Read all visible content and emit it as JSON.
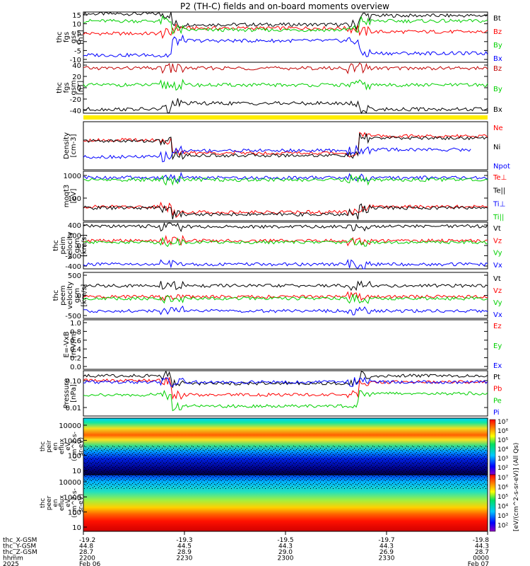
{
  "title": "P2 (TH-C) fields and on-board moments overview",
  "colors": {
    "black": "#000000",
    "red": "#ff0000",
    "green": "#00d000",
    "blue": "#0000ff",
    "darkred": "#c00000",
    "yellow": "#ffee00"
  },
  "chart_data": [
    {
      "type": "line",
      "ylabel": [
        "thc",
        "fgs",
        "gse",
        "[nT]"
      ],
      "yticks": [
        "15",
        "10",
        "5",
        "0",
        "-5",
        "-10"
      ],
      "ylim": [
        -12,
        16
      ],
      "series": [
        {
          "name": "Bt",
          "color": "#000000",
          "segments": [
            [
              0,
              0.22,
              15
            ],
            [
              0.22,
              0.68,
              9
            ],
            [
              0.68,
              1,
              14
            ]
          ]
        },
        {
          "name": "Bz",
          "color": "#ff0000",
          "segments": [
            [
              0,
              0.22,
              4
            ],
            [
              0.22,
              0.68,
              7
            ],
            [
              0.68,
              1,
              5
            ]
          ]
        },
        {
          "name": "By",
          "color": "#00d000",
          "segments": [
            [
              0,
              0.22,
              11
            ],
            [
              0.22,
              0.68,
              6
            ],
            [
              0.68,
              1,
              11
            ]
          ]
        },
        {
          "name": "Bx",
          "color": "#0000ff",
          "segments": [
            [
              0,
              0.22,
              -8
            ],
            [
              0.22,
              0.68,
              0
            ],
            [
              0.68,
              1,
              -7
            ]
          ]
        }
      ]
    },
    {
      "type": "line",
      "ylabel": [
        "thc",
        "fgs",
        "gsm",
        "[nT]"
      ],
      "yticks": [
        "40",
        "20",
        "0",
        "-20",
        "-40"
      ],
      "ylim": [
        -55,
        48
      ],
      "series": [
        {
          "name": "Bz",
          "color": "#c00000",
          "segments": [
            [
              0,
              1,
              36
            ]
          ]
        },
        {
          "name": "By",
          "color": "#00d000",
          "segments": [
            [
              0,
              1,
              2
            ]
          ]
        },
        {
          "name": "Bx",
          "color": "#000000",
          "segments": [
            [
              0,
              0.22,
              -47
            ],
            [
              0.22,
              0.68,
              -35
            ],
            [
              0.68,
              1,
              -47
            ]
          ]
        }
      ]
    },
    {
      "type": "line",
      "ylabel": [
        "Density",
        "[cm-3]"
      ],
      "yticks": [],
      "ylim": [
        0,
        1
      ],
      "series": [
        {
          "name": "Ne",
          "color": "#ff0000",
          "segments": [
            [
              0,
              0.22,
              0.62
            ],
            [
              0.22,
              0.68,
              0.35
            ],
            [
              0.68,
              1,
              0.7
            ]
          ]
        },
        {
          "name": "Ni",
          "color": "#000000",
          "segments": [
            [
              0,
              0.22,
              0.6
            ],
            [
              0.22,
              0.68,
              0.3
            ],
            [
              0.68,
              1,
              0.66
            ]
          ]
        },
        {
          "name": "Npot",
          "color": "#0000ff",
          "segments": [
            [
              0,
              0.22,
              0.27
            ],
            [
              0.22,
              0.68,
              0.4
            ],
            [
              0.68,
              0.96,
              0.42
            ]
          ]
        }
      ]
    },
    {
      "type": "line",
      "ylabel": [
        "moqt3",
        "[eV]"
      ],
      "yticks": [
        "1000",
        "100"
      ],
      "ylim": [
        1,
        3.3
      ],
      "series": [
        {
          "name": "Te⊥",
          "color": "#ff0000",
          "segments": [
            [
              0,
              0.22,
              1.65
            ],
            [
              0.22,
              0.68,
              1.4
            ],
            [
              0.68,
              1,
              1.65
            ]
          ]
        },
        {
          "name": "Te||",
          "color": "#000000",
          "segments": [
            [
              0,
              0.22,
              1.6
            ],
            [
              0.22,
              0.68,
              1.3
            ],
            [
              0.68,
              1,
              1.6
            ]
          ]
        },
        {
          "name": "Ti⊥",
          "color": "#0000ff",
          "segments": [
            [
              0,
              1,
              3.0
            ]
          ]
        },
        {
          "name": "Ti||",
          "color": "#00d000",
          "segments": [
            [
              0,
              1,
              2.9
            ]
          ]
        }
      ]
    },
    {
      "type": "line",
      "ylabel": [
        "thc",
        "peim",
        "velocity",
        "gsm",
        "[km/s]"
      ],
      "yticks": [
        "400",
        "200",
        "0",
        "-200",
        "-400"
      ],
      "ylim": [
        -460,
        470
      ],
      "series": [
        {
          "name": "Vt",
          "color": "#000000",
          "segments": [
            [
              0,
              0.22,
              390
            ],
            [
              0.22,
              0.68,
              380
            ],
            [
              0.68,
              1,
              390
            ]
          ]
        },
        {
          "name": "Vz",
          "color": "#ff0000",
          "segments": [
            [
              0,
              1,
              100
            ]
          ]
        },
        {
          "name": "Vy",
          "color": "#00d000",
          "segments": [
            [
              0,
              1,
              70
            ]
          ]
        },
        {
          "name": "Vx",
          "color": "#0000ff",
          "segments": [
            [
              0,
              1,
              -370
            ]
          ]
        }
      ]
    },
    {
      "type": "line",
      "ylabel": [
        "thc",
        "peem",
        "velocity",
        "gsm",
        "[km/s]"
      ],
      "yticks": [
        "500",
        "0",
        "-500"
      ],
      "ylim": [
        -650,
        900
      ],
      "series": [
        {
          "name": "Vt",
          "color": "#000000",
          "segments": [
            [
              0,
              1,
              450
            ]
          ]
        },
        {
          "name": "Vz",
          "color": "#ff0000",
          "segments": [
            [
              0,
              1,
              80
            ]
          ]
        },
        {
          "name": "Vy",
          "color": "#00d000",
          "segments": [
            [
              0,
              1,
              20
            ]
          ]
        },
        {
          "name": "Vx",
          "color": "#0000ff",
          "segments": [
            [
              0,
              1,
              -400
            ]
          ]
        }
      ]
    },
    {
      "type": "line",
      "ylabel": [
        "E=-VxB",
        "[mV/m]"
      ],
      "yticks": [
        "1.0",
        "0.8",
        "0.6",
        "0.4",
        "0.2",
        "0.0"
      ],
      "ylim": [
        -0.05,
        1.05
      ],
      "legend_only": true,
      "series": [
        {
          "name": "Ez",
          "color": "#ff0000",
          "segments": []
        },
        {
          "name": "Ey",
          "color": "#00d000",
          "segments": []
        },
        {
          "name": "Ex",
          "color": "#0000ff",
          "segments": []
        }
      ]
    },
    {
      "type": "line",
      "ylabel": [
        "Pressure",
        "[nPa]"
      ],
      "yticks": [
        "0.10",
        "0.01"
      ],
      "ylim": [
        -2.3,
        -0.7
      ],
      "series": [
        {
          "name": "Pt",
          "color": "#000000",
          "segments": [
            [
              0,
              0.22,
              -0.88
            ],
            [
              0.22,
              0.68,
              -1.15
            ],
            [
              0.68,
              1,
              -0.88
            ]
          ]
        },
        {
          "name": "Pb",
          "color": "#ff0000",
          "segments": [
            [
              0,
              0.22,
              -1.05
            ],
            [
              0.22,
              0.68,
              -1.55
            ],
            [
              0.68,
              1,
              -1.1
            ]
          ]
        },
        {
          "name": "Pe",
          "color": "#00d000",
          "segments": [
            [
              0,
              0.22,
              -1.55
            ],
            [
              0.22,
              0.68,
              -1.95
            ],
            [
              0.68,
              1,
              -1.5
            ]
          ]
        },
        {
          "name": "Pi",
          "color": "#0000ff",
          "segments": [
            [
              0,
              1,
              -1.1
            ]
          ]
        }
      ]
    },
    {
      "type": "heatmap",
      "ylabel": [
        "thc",
        "peir",
        "en",
        "eflux",
        "eV",
        "(cm^2-s-",
        "sr-eV)"
      ],
      "yticks": [
        "10000",
        "1000",
        "100",
        "10"
      ]
    },
    {
      "type": "heatmap",
      "ylabel": [
        "thc",
        "peer",
        "en",
        "eflux",
        "eV",
        "(cm^2-s-",
        "sr-eV)"
      ],
      "yticks": [
        "10000",
        "1000",
        "100",
        "10"
      ]
    }
  ],
  "colorbar": {
    "label": "[eV/(cm^2-s-sr-eV)] (All Qs)",
    "top_ticks": [
      "10⁷",
      "10⁶",
      "10⁵",
      "10⁴",
      "10³",
      "10²"
    ],
    "bottom_ticks": [
      "10⁷",
      "10⁶",
      "10⁵",
      "10⁴",
      "10³",
      "10²"
    ]
  },
  "xaxis": {
    "row_labels": [
      "thc_X-GSM",
      "thc_Y-GSM",
      "thc_Z-GSM",
      "hhmm",
      "2025"
    ],
    "ticks": [
      {
        "pos": 0.0,
        "values": [
          "-19.2",
          "44.8",
          "28.7",
          "2200",
          "Feb 06"
        ]
      },
      {
        "pos": 0.25,
        "values": [
          "-19.3",
          "44.5",
          "28.9",
          "2230",
          ""
        ]
      },
      {
        "pos": 0.5,
        "values": [
          "-19.5",
          "44.3",
          "29.0",
          "2300",
          ""
        ]
      },
      {
        "pos": 0.75,
        "values": [
          "-19.7",
          "44.3",
          "26.9",
          "2330",
          ""
        ]
      },
      {
        "pos": 1.0,
        "values": [
          "-19.8",
          "44.3",
          "28.7",
          "0000",
          "Feb 07"
        ]
      }
    ]
  }
}
